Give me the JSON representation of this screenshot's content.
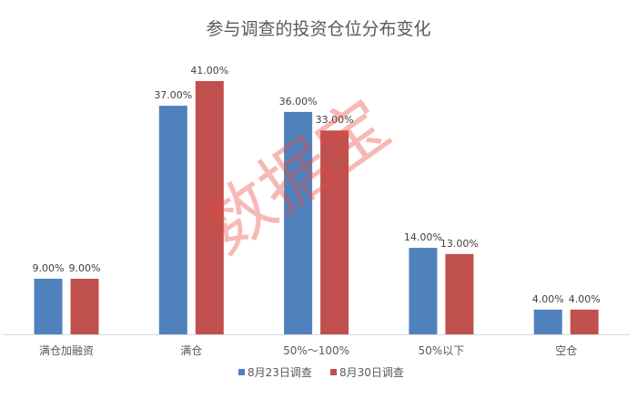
{
  "chart_data": {
    "type": "bar",
    "title": "参与调查的投资仓位分布变化",
    "categories": [
      "满仓加融资",
      "满仓",
      "50%～100%",
      "50%以下",
      "空仓"
    ],
    "series": [
      {
        "name": "8月23日调查",
        "color": "#4f81bd",
        "values": [
          9,
          37,
          36,
          14,
          4
        ],
        "labels": [
          "9.00%",
          "37.00%",
          "36.00%",
          "14.00%",
          "4.00%"
        ]
      },
      {
        "name": "8月30日调查",
        "color": "#c0504d",
        "values": [
          9,
          41,
          33,
          13,
          4
        ],
        "labels": [
          "9.00%",
          "41.00%",
          "33.00%",
          "13.00%",
          "4.00%"
        ]
      }
    ],
    "xlabel": "",
    "ylabel": "",
    "ylim": [
      0,
      41
    ],
    "grid": false,
    "legend": "bottom"
  },
  "watermark": "数据宝"
}
